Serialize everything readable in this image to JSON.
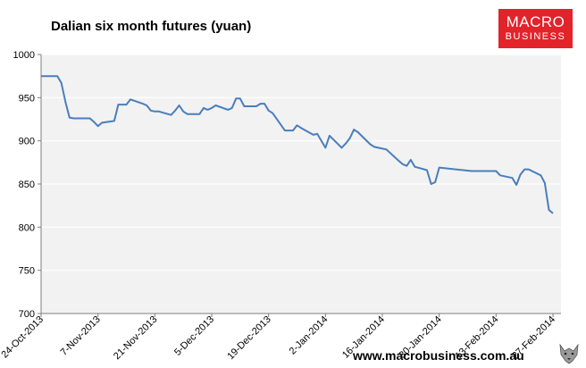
{
  "chart_data": {
    "type": "line",
    "title": "Dalian six month futures (yuan)",
    "xlabel": "",
    "ylabel": "",
    "ylim": [
      700,
      1000
    ],
    "yticks": [
      700,
      750,
      800,
      850,
      900,
      950,
      1000
    ],
    "x_tick_labels": [
      "24-Oct-2013",
      "7-Nov-2013",
      "21-Nov-2013",
      "5-Dec-2013",
      "19-Dec-2013",
      "2-Jan-2014",
      "16-Jan-2014",
      "30-Jan-2014",
      "13-Feb-2014",
      "27-Feb-2014"
    ],
    "grid": "horizontal",
    "legend": "none",
    "line_color": "#4a7ebb",
    "series": [
      {
        "x": [
          "2013-10-24",
          "2013-10-25",
          "2013-10-28",
          "2013-10-29",
          "2013-10-30",
          "2013-10-31",
          "2013-11-01",
          "2013-11-04",
          "2013-11-05",
          "2013-11-06",
          "2013-11-07",
          "2013-11-08",
          "2013-11-11",
          "2013-11-12",
          "2013-11-13",
          "2013-11-14",
          "2013-11-15",
          "2013-11-18",
          "2013-11-19",
          "2013-11-20",
          "2013-11-21",
          "2013-11-22",
          "2013-11-25",
          "2013-11-26",
          "2013-11-27",
          "2013-11-28",
          "2013-11-29",
          "2013-12-02",
          "2013-12-03",
          "2013-12-04",
          "2013-12-05",
          "2013-12-06",
          "2013-12-09",
          "2013-12-10",
          "2013-12-11",
          "2013-12-12",
          "2013-12-13",
          "2013-12-16",
          "2013-12-17",
          "2013-12-18",
          "2013-12-19",
          "2013-12-20",
          "2013-12-23",
          "2013-12-24",
          "2013-12-25",
          "2013-12-26",
          "2013-12-27",
          "2013-12-30",
          "2013-12-31",
          "2014-01-02",
          "2014-01-03",
          "2014-01-06",
          "2014-01-07",
          "2014-01-08",
          "2014-01-09",
          "2014-01-10",
          "2014-01-13",
          "2014-01-14",
          "2014-01-15",
          "2014-01-16",
          "2014-01-17",
          "2014-01-20",
          "2014-01-21",
          "2014-01-22",
          "2014-01-23",
          "2014-01-24",
          "2014-01-27",
          "2014-01-28",
          "2014-01-29",
          "2014-01-30",
          "2014-02-07",
          "2014-02-10",
          "2014-02-11",
          "2014-02-12",
          "2014-02-13",
          "2014-02-14",
          "2014-02-17",
          "2014-02-18",
          "2014-02-19",
          "2014-02-20",
          "2014-02-21",
          "2014-02-24",
          "2014-02-25",
          "2014-02-26",
          "2014-02-27"
        ],
        "values": [
          975,
          975,
          975,
          967,
          945,
          927,
          926,
          926,
          926,
          922,
          917,
          921,
          923,
          942,
          942,
          942,
          948,
          943,
          941,
          935,
          934,
          934,
          930,
          935,
          941,
          934,
          931,
          931,
          938,
          936,
          938,
          941,
          936,
          938,
          949,
          949,
          940,
          940,
          943,
          943,
          935,
          932,
          912,
          912,
          912,
          918,
          915,
          907,
          908,
          892,
          906,
          892,
          897,
          903,
          913,
          910,
          896,
          893,
          892,
          891,
          890,
          877,
          873,
          871,
          878,
          870,
          866,
          850,
          852,
          869,
          865,
          865,
          865,
          865,
          865,
          860,
          857,
          849,
          861,
          867,
          867,
          860,
          851,
          820,
          816
        ]
      }
    ]
  },
  "logo": {
    "line1": "MACRO",
    "line2": "BUSINESS"
  },
  "footer": {
    "website": "www.macrobusiness.com.au"
  },
  "icons": {
    "logo_mark": "wolf-icon"
  }
}
